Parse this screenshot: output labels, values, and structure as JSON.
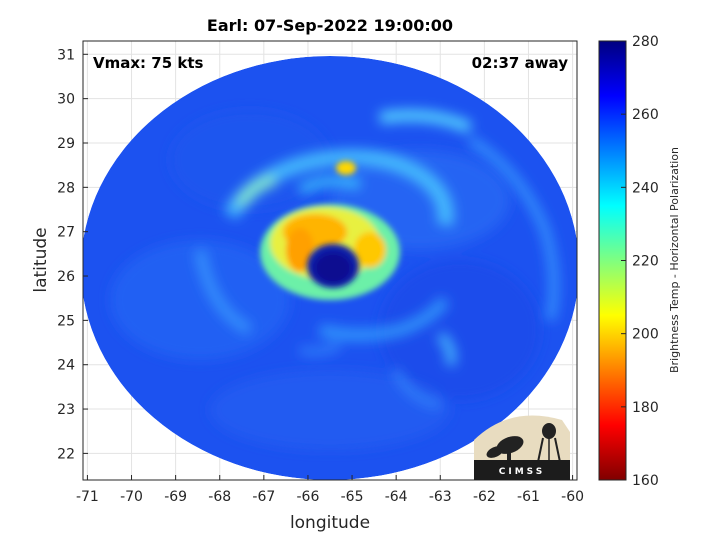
{
  "title": "Earl: 07-Sep-2022 19:00:00",
  "vmax_label": "Vmax: 75 kts",
  "time_away_label": "02:37 away",
  "xlabel": "longitude",
  "ylabel": "latitude",
  "logo_text": "CIMSS",
  "colorbar": {
    "label": "Brightness Temp - Horizontal Polarization",
    "min": 160,
    "max": 280,
    "ticks": [
      160,
      180,
      200,
      220,
      240,
      260,
      280
    ],
    "colormap": "jet"
  },
  "chart_data": {
    "type": "heatmap",
    "title": "Earl: 07-Sep-2022 19:00:00",
    "xlabel": "longitude",
    "ylabel": "latitude",
    "xlim": [
      -71.1,
      -59.9
    ],
    "ylim": [
      21.4,
      31.3
    ],
    "xticks": [
      -71,
      -70,
      -69,
      -68,
      -67,
      -66,
      -65,
      -64,
      -63,
      -62,
      -61,
      -60
    ],
    "yticks": [
      22,
      23,
      24,
      25,
      26,
      27,
      28,
      29,
      30,
      31
    ],
    "grid": true,
    "storm_center": {
      "lon": -65.7,
      "lat": 26.3
    },
    "eye_brightness_temp": 275,
    "eyewall_min_brightness_temp": 200,
    "background_brightness_temp": 258
  }
}
